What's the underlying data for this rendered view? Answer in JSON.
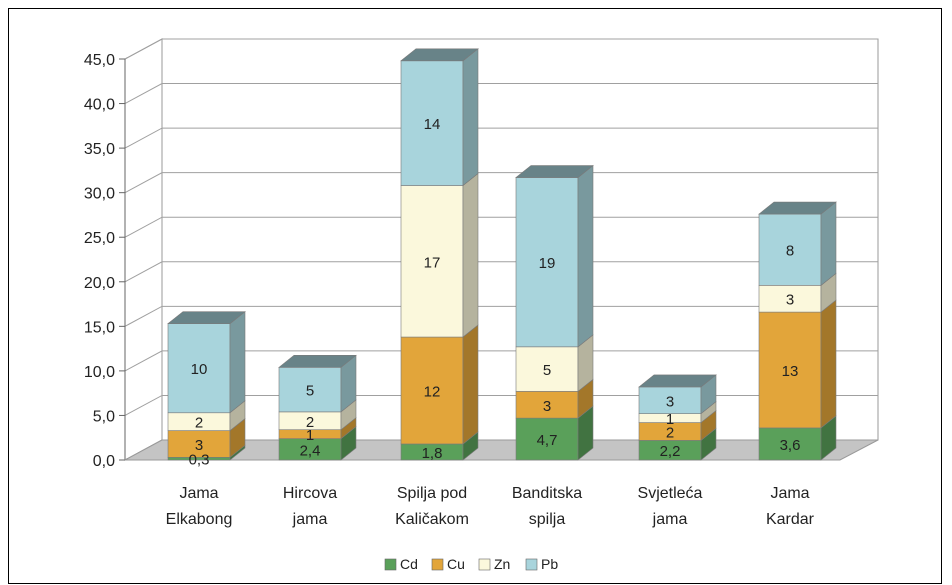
{
  "chart_data": {
    "type": "bar",
    "stacked": true,
    "three_d": true,
    "categories": [
      [
        "Jama",
        "Elkabong"
      ],
      [
        "Hircova",
        "jama"
      ],
      [
        "Spilja pod",
        "Kaličakom"
      ],
      [
        "Banditska",
        "spilja"
      ],
      [
        "Svjetleća",
        "jama"
      ],
      [
        "Jama",
        "Kardar"
      ]
    ],
    "series": [
      {
        "name": "Cd",
        "color": "#5aa05a",
        "values": [
          0.3,
          2.4,
          1.8,
          4.7,
          2.2,
          3.6
        ],
        "labels": [
          "0,3",
          "2,4",
          "1,8",
          "4,7",
          "2,2",
          "3,6"
        ]
      },
      {
        "name": "Cu",
        "color": "#e2a53a",
        "values": [
          3,
          1,
          12,
          3,
          2,
          13
        ],
        "labels": [
          "3",
          "1",
          "12",
          "3",
          "2",
          "13"
        ]
      },
      {
        "name": "Zn",
        "color": "#fbf8dc",
        "values": [
          2,
          2,
          17,
          5,
          1,
          3
        ],
        "labels": [
          "2",
          "2",
          "17",
          "5",
          "1",
          "3"
        ]
      },
      {
        "name": "Pb",
        "color": "#a8d4dc",
        "values": [
          10,
          5,
          14,
          19,
          3,
          8
        ],
        "labels": [
          "10",
          "5",
          "14",
          "19",
          "3",
          "8"
        ]
      }
    ],
    "y_ticks": [
      "0,0",
      "5,0",
      "10,0",
      "15,0",
      "20,0",
      "25,0",
      "30,0",
      "35,0",
      "40,0",
      "45,0"
    ],
    "ylim": [
      0,
      45
    ],
    "title": "",
    "xlabel": "",
    "ylabel": "",
    "grid": true,
    "legend_position": "bottom"
  }
}
